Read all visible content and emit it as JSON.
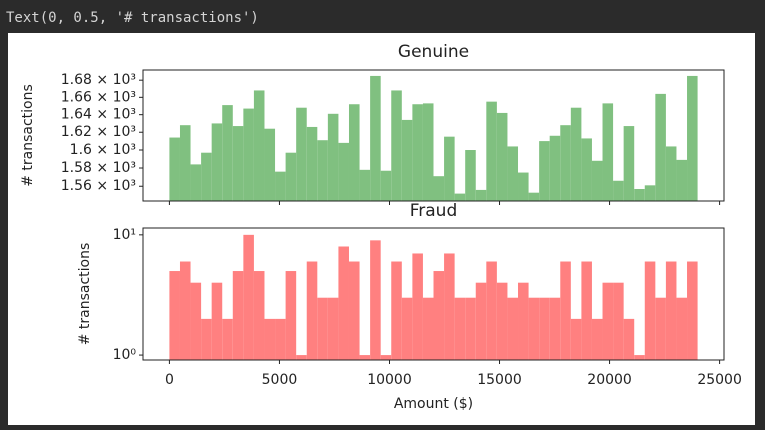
{
  "output_text": "Text(0, 0.5, '# transactions')",
  "chart_data": [
    {
      "type": "histogram",
      "title": "Genuine",
      "y_label": "# transactions",
      "color": "#80c080",
      "log_y": true,
      "xtick_labels": false,
      "bins": [
        0,
        480,
        960,
        1440,
        1920,
        2400,
        2880,
        3360,
        3840,
        4320,
        4800,
        5280,
        5760,
        6240,
        6720,
        7200,
        7680,
        8160,
        8640,
        9120,
        9600,
        10080,
        10560,
        11040,
        11520,
        12000,
        12480,
        12960,
        13440,
        13920,
        14400,
        14880,
        15360,
        15840,
        16320,
        16800,
        17280,
        17760,
        18240,
        18720,
        19200,
        19680,
        20160,
        20640,
        21120,
        21600,
        22080,
        22560,
        23040,
        23520,
        24000
      ],
      "values": [
        1614,
        1628,
        1584,
        1597,
        1630,
        1651,
        1627,
        1647,
        1668,
        1624,
        1576,
        1597,
        1648,
        1626,
        1611,
        1641,
        1608,
        1652,
        1578,
        1685,
        1577,
        1668,
        1634,
        1652,
        1653,
        1571,
        1615,
        1552,
        1600,
        1556,
        1655,
        1642,
        1604,
        1575,
        1553,
        1610,
        1616,
        1628,
        1648,
        1613,
        1588,
        1653,
        1566,
        1627,
        1557,
        1561,
        1664,
        1604,
        1589,
        1685
      ],
      "xlim": [
        -1200,
        25200
      ],
      "xticks": [
        0,
        5000,
        10000,
        15000,
        20000,
        25000
      ],
      "ylim": [
        1544,
        1692
      ],
      "yticks": [
        {
          "value": 1560,
          "label": "1.56 × 10³"
        },
        {
          "value": 1580,
          "label": "1.58 × 10³"
        },
        {
          "value": 1600,
          "label": "1.6 × 10³"
        },
        {
          "value": 1620,
          "label": "1.62 × 10³"
        },
        {
          "value": 1640,
          "label": "1.64 × 10³"
        },
        {
          "value": 1660,
          "label": "1.66 × 10³"
        },
        {
          "value": 1680,
          "label": "1.68 × 10³"
        }
      ]
    },
    {
      "type": "histogram",
      "title": "Fraud",
      "y_label": "# transactions",
      "x_label": "Amount ($)",
      "color": "#ff8080",
      "log_y": true,
      "xtick_labels": true,
      "bins": [
        0,
        480,
        960,
        1440,
        1920,
        2400,
        2880,
        3360,
        3840,
        4320,
        4800,
        5280,
        5760,
        6240,
        6720,
        7200,
        7680,
        8160,
        8640,
        9120,
        9600,
        10080,
        10560,
        11040,
        11520,
        12000,
        12480,
        12960,
        13440,
        13920,
        14400,
        14880,
        15360,
        15840,
        16320,
        16800,
        17280,
        17760,
        18240,
        18720,
        19200,
        19680,
        20160,
        20640,
        21120,
        21600,
        22080,
        22560,
        23040,
        23520,
        24000
      ],
      "values": [
        5,
        6,
        4,
        2,
        4,
        2,
        5,
        10,
        5,
        2,
        2,
        5,
        1,
        6,
        3,
        3,
        8,
        6,
        1,
        9,
        1,
        6,
        3,
        7,
        3,
        5,
        7,
        3,
        3,
        4,
        6,
        4,
        3,
        4,
        3,
        3,
        3,
        6,
        2,
        6,
        2,
        4,
        4,
        2,
        1,
        6,
        3,
        6,
        3,
        6
      ],
      "xlim": [
        -1200,
        25200
      ],
      "xticks": [
        0,
        5000,
        10000,
        15000,
        20000,
        25000
      ],
      "ylim": [
        0.91,
        11.4
      ],
      "yticks": [
        {
          "value": 1,
          "label": "10⁰"
        },
        {
          "value": 10,
          "label": "10¹"
        }
      ]
    }
  ]
}
